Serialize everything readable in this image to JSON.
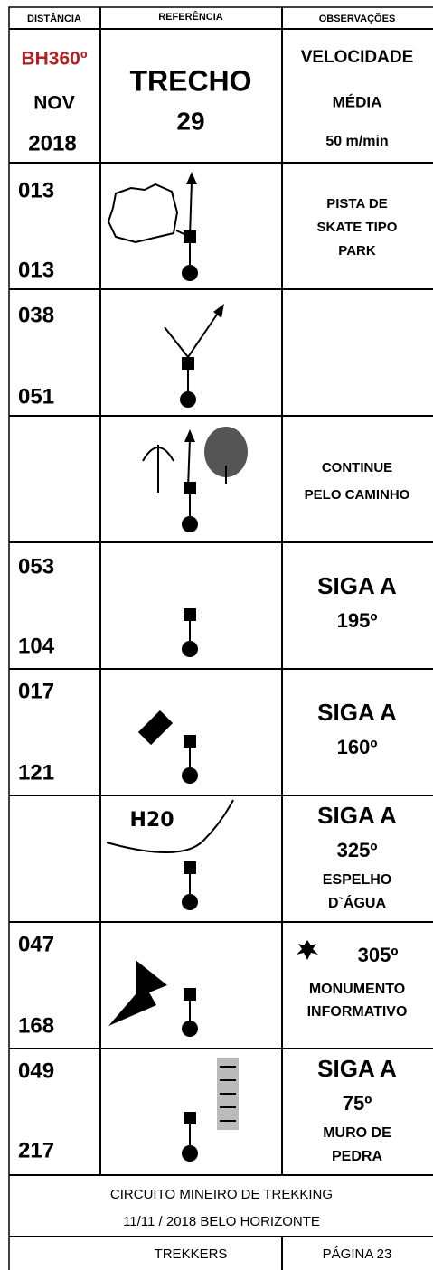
{
  "header": {
    "columns": [
      "DISTÂNCIA",
      "REFERÊNCIA",
      "OBSERVAÇÕES"
    ]
  },
  "intro": {
    "brand": "BH360º",
    "month": "NOV",
    "year": "2018",
    "section_label": "TRECHO",
    "section_number": "29",
    "speed_lines": [
      "VELOCIDADE",
      "MÉDIA",
      "50 m/min"
    ]
  },
  "rows": [
    {
      "distance_start": "013",
      "distance_end": "013",
      "notes": [
        "PISTA DE",
        "SKATE TIPO",
        "PARK"
      ]
    },
    {
      "distance_start": "038",
      "distance_end": "051"
    },
    {
      "notes": [
        "CONTINUE",
        "PELO CAMINHO"
      ]
    },
    {
      "distance_start": "053",
      "distance_end": "104",
      "notes": [
        "SIGA A",
        "195º"
      ]
    },
    {
      "distance_start": "017",
      "distance_end": "121",
      "notes": [
        "SIGA A",
        "160º"
      ]
    },
    {
      "icon_label": "H20",
      "notes": [
        "SIGA A",
        "325º",
        "ESPELHO",
        "D`ÁGUA"
      ]
    },
    {
      "distance_start": "047",
      "distance_end": "168",
      "notes": [
        "305º",
        "MONUMENTO",
        "INFORMATIVO"
      ]
    },
    {
      "distance_start": "049",
      "distance_end": "217",
      "notes": [
        "SIGA A",
        "75º",
        "MURO DE",
        "PEDRA"
      ]
    }
  ],
  "footer": {
    "event": "CIRCUITO MINEIRO DE TREKKING",
    "date_place": "11/11 / 2018  BELO HORIZONTE",
    "team": "TREKKERS",
    "page": "PÁGINA 23"
  }
}
